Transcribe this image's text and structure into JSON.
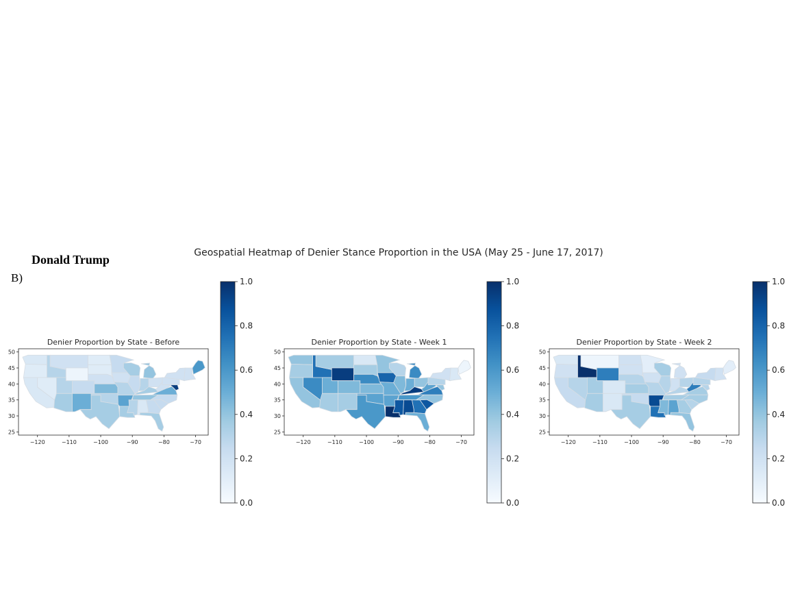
{
  "header": {
    "person": "Donald Trump",
    "panel_letter": "B)"
  },
  "colors": {
    "cmap_low": "#f7fbff",
    "cmap_high": "#08306b",
    "border": "#d6dde4"
  },
  "chart_data": {
    "type": "heatmap",
    "title": "Geospatial Heatmap of Denier Stance Proportion in the USA (May 25 - June 17, 2017)",
    "colormap": "Blues",
    "xlim": [
      -126,
      -66
    ],
    "ylim": [
      24,
      51
    ],
    "x_ticks": [
      "−120",
      "−110",
      "−100",
      "−90",
      "−80",
      "−70"
    ],
    "y_ticks": [
      "25",
      "30",
      "35",
      "40",
      "45",
      "50"
    ],
    "colorbar": {
      "min": 0.0,
      "max": 1.0,
      "ticks": [
        "0.0",
        "0.2",
        "0.4",
        "0.6",
        "0.8",
        "1.0"
      ]
    },
    "panels": [
      {
        "title": "Denier Proportion by State - Before",
        "values": {
          "WA": 0.15,
          "OR": 0.12,
          "CA": 0.15,
          "NV": 0.12,
          "ID": 0.3,
          "MT": 0.2,
          "WY": 0.05,
          "UT": 0.3,
          "AZ": 0.35,
          "CO": 0.25,
          "NM": 0.5,
          "ND": 0.12,
          "SD": 0.12,
          "NE": 0.2,
          "KS": 0.45,
          "OK": 0.3,
          "TX": 0.35,
          "MN": 0.25,
          "IA": 0.2,
          "MO": 0.3,
          "AR": 0.55,
          "LA": 0.35,
          "WI": 0.35,
          "IL": 0.25,
          "MI": 0.4,
          "IN": 0.3,
          "OH": 0.2,
          "KY": 0.35,
          "TN": 0.4,
          "MS": 0.3,
          "AL": 0.15,
          "GA": 0.25,
          "FL": 0.35,
          "SC": 0.25,
          "NC": 0.25,
          "VA": 0.5,
          "WV": 0.2,
          "PA": 0.2,
          "NY": 0.2,
          "ME": 0.6,
          "NE_corner": 0.2,
          "MD": 0.95
        }
      },
      {
        "title": "Denier Proportion by State - Week 1",
        "values": {
          "WA": 0.4,
          "OR": 0.35,
          "CA": 0.4,
          "NV": 0.65,
          "ID": 0.75,
          "MT": 0.35,
          "WY": 0.95,
          "UT": 0.5,
          "AZ": 0.35,
          "CO": 0.45,
          "NM": 0.35,
          "ND": 0.15,
          "SD": 0.35,
          "NE": 0.65,
          "KS": 0.45,
          "OK": 0.55,
          "TX": 0.6,
          "MN": 0.4,
          "IA": 0.8,
          "MO": 0.5,
          "AR": 0.55,
          "LA": 1.0,
          "WI": 0.3,
          "IL": 0.45,
          "MI": 0.65,
          "IN": 0.5,
          "OH": 0.4,
          "KY": 0.95,
          "TN": 0.6,
          "MS": 0.85,
          "AL": 0.9,
          "GA": 0.75,
          "FL": 0.5,
          "SC": 0.85,
          "NC": 0.4,
          "VA": 0.7,
          "WV": 0.55,
          "PA": 0.3,
          "NY": 0.2,
          "ME": 0.05,
          "NE_corner": 0.15,
          "MD": 0.4
        }
      },
      {
        "title": "Denier Proportion by State - Week 2",
        "values": {
          "WA": 0.15,
          "OR": 0.2,
          "CA": 0.25,
          "NV": 0.3,
          "ID": 1.0,
          "MT": 0.05,
          "WY": 0.7,
          "UT": 0.35,
          "AZ": 0.35,
          "CO": 0.15,
          "NM": 0.15,
          "ND": 0.2,
          "SD": 0.2,
          "NE": 0.3,
          "KS": 0.35,
          "OK": 0.25,
          "TX": 0.35,
          "MN": 0.1,
          "IA": 0.2,
          "MO": 0.3,
          "AR": 0.9,
          "LA": 0.75,
          "WI": 0.35,
          "IL": 0.3,
          "MI": 0.2,
          "IN": 0.2,
          "OH": 0.3,
          "KY": 0.3,
          "TN": 0.35,
          "MS": 0.45,
          "AL": 0.55,
          "GA": 0.35,
          "FL": 0.4,
          "SC": 0.3,
          "NC": 0.35,
          "VA": 0.35,
          "WV": 0.7,
          "PA": 0.3,
          "NY": 0.25,
          "ME": 0.1,
          "NE_corner": 0.2,
          "MD": 0.3
        }
      }
    ]
  }
}
